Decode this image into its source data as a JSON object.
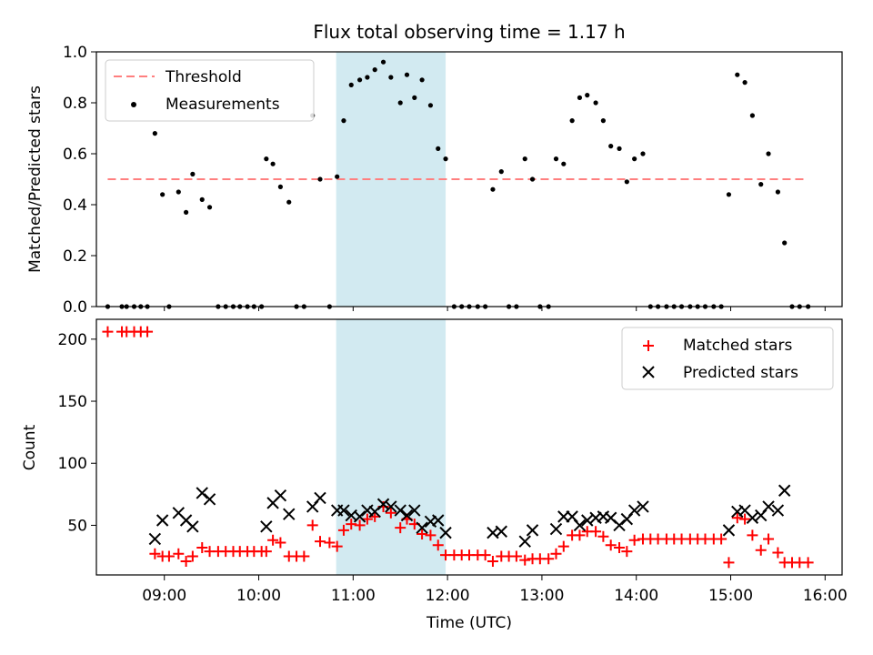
{
  "figure": {
    "title": "Flux total observing time = 1.17 h",
    "xlabel": "Time (UTC)"
  },
  "highlight_color": "#add8e6",
  "chart_data": [
    {
      "id": "top",
      "type": "scatter",
      "ylabel": "Matched/Predicted stars",
      "xlim": [
        8.28,
        16.18
      ],
      "ylim": [
        0,
        1.0
      ],
      "yticks": [
        0.0,
        0.2,
        0.4,
        0.6,
        0.8,
        1.0
      ],
      "ytick_labels": [
        "0.0",
        "0.2",
        "0.4",
        "0.6",
        "0.8",
        "1.0"
      ],
      "highlight_span": [
        10.82,
        11.98
      ],
      "threshold": {
        "label": "Threshold",
        "value": 0.5,
        "x_range": [
          8.4,
          15.78
        ],
        "color": "#ff7f7f"
      },
      "legend": {
        "position": "upper left",
        "entries": [
          "Threshold",
          "Measurements"
        ]
      },
      "series": [
        {
          "name": "Measurements",
          "color": "#000000",
          "points": [
            [
              8.4,
              0
            ],
            [
              8.55,
              0
            ],
            [
              8.6,
              0
            ],
            [
              8.68,
              0
            ],
            [
              8.75,
              0
            ],
            [
              8.82,
              0
            ],
            [
              8.9,
              0.68
            ],
            [
              8.98,
              0.44
            ],
            [
              9.05,
              0
            ],
            [
              9.15,
              0.45
            ],
            [
              9.23,
              0.37
            ],
            [
              9.3,
              0.52
            ],
            [
              9.4,
              0.42
            ],
            [
              9.48,
              0.39
            ],
            [
              9.57,
              0
            ],
            [
              9.65,
              0
            ],
            [
              9.73,
              0
            ],
            [
              9.8,
              0
            ],
            [
              9.88,
              0
            ],
            [
              9.95,
              0
            ],
            [
              10.03,
              0
            ],
            [
              10.08,
              0.58
            ],
            [
              10.15,
              0.56
            ],
            [
              10.23,
              0.47
            ],
            [
              10.32,
              0.41
            ],
            [
              10.4,
              0
            ],
            [
              10.48,
              0
            ],
            [
              10.57,
              0.75
            ],
            [
              10.65,
              0.5
            ],
            [
              10.75,
              0
            ],
            [
              10.83,
              0.51
            ],
            [
              10.9,
              0.73
            ],
            [
              10.98,
              0.87
            ],
            [
              11.07,
              0.89
            ],
            [
              11.15,
              0.9
            ],
            [
              11.23,
              0.93
            ],
            [
              11.32,
              0.96
            ],
            [
              11.4,
              0.9
            ],
            [
              11.5,
              0.8
            ],
            [
              11.57,
              0.91
            ],
            [
              11.65,
              0.82
            ],
            [
              11.73,
              0.89
            ],
            [
              11.82,
              0.79
            ],
            [
              11.9,
              0.62
            ],
            [
              11.98,
              0.58
            ],
            [
              12.07,
              0
            ],
            [
              12.15,
              0
            ],
            [
              12.23,
              0
            ],
            [
              12.32,
              0
            ],
            [
              12.4,
              0
            ],
            [
              12.48,
              0.46
            ],
            [
              12.57,
              0.53
            ],
            [
              12.65,
              0
            ],
            [
              12.73,
              0
            ],
            [
              12.82,
              0.58
            ],
            [
              12.9,
              0.5
            ],
            [
              12.98,
              0
            ],
            [
              13.07,
              0
            ],
            [
              13.15,
              0.58
            ],
            [
              13.23,
              0.56
            ],
            [
              13.32,
              0.73
            ],
            [
              13.4,
              0.82
            ],
            [
              13.48,
              0.83
            ],
            [
              13.57,
              0.8
            ],
            [
              13.65,
              0.73
            ],
            [
              13.73,
              0.63
            ],
            [
              13.82,
              0.62
            ],
            [
              13.9,
              0.49
            ],
            [
              13.98,
              0.58
            ],
            [
              14.07,
              0.6
            ],
            [
              14.15,
              0
            ],
            [
              14.23,
              0
            ],
            [
              14.32,
              0
            ],
            [
              14.4,
              0
            ],
            [
              14.48,
              0
            ],
            [
              14.57,
              0
            ],
            [
              14.65,
              0
            ],
            [
              14.73,
              0
            ],
            [
              14.82,
              0
            ],
            [
              14.9,
              0
            ],
            [
              14.98,
              0.44
            ],
            [
              15.07,
              0.91
            ],
            [
              15.15,
              0.88
            ],
            [
              15.23,
              0.75
            ],
            [
              15.32,
              0.48
            ],
            [
              15.4,
              0.6
            ],
            [
              15.5,
              0.45
            ],
            [
              15.57,
              0.25
            ],
            [
              15.65,
              0
            ],
            [
              15.73,
              0
            ],
            [
              15.82,
              0
            ]
          ]
        }
      ]
    },
    {
      "id": "bottom",
      "type": "scatter",
      "ylabel": "Count",
      "xlim": [
        8.28,
        16.18
      ],
      "ylim": [
        10,
        216
      ],
      "yticks": [
        50,
        100,
        150,
        200
      ],
      "ytick_labels": [
        "50",
        "100",
        "150",
        "200"
      ],
      "xticks": [
        9,
        10,
        11,
        12,
        13,
        14,
        15,
        16
      ],
      "xtick_labels": [
        "09:00",
        "10:00",
        "11:00",
        "12:00",
        "13:00",
        "14:00",
        "15:00",
        "16:00"
      ],
      "highlight_span": [
        10.82,
        11.98
      ],
      "legend": {
        "position": "upper right",
        "entries": [
          "Matched stars",
          "Predicted stars"
        ]
      },
      "series": [
        {
          "name": "Matched stars",
          "marker": "+",
          "color": "#ff0000",
          "points": [
            [
              8.4,
              206
            ],
            [
              8.55,
              206
            ],
            [
              8.6,
              206
            ],
            [
              8.68,
              206
            ],
            [
              8.75,
              206
            ],
            [
              8.82,
              206
            ],
            [
              8.9,
              27
            ],
            [
              8.98,
              25
            ],
            [
              9.05,
              25
            ],
            [
              9.15,
              27
            ],
            [
              9.23,
              21
            ],
            [
              9.3,
              25
            ],
            [
              9.4,
              32
            ],
            [
              9.48,
              29
            ],
            [
              9.57,
              29
            ],
            [
              9.65,
              29
            ],
            [
              9.73,
              29
            ],
            [
              9.8,
              29
            ],
            [
              9.88,
              29
            ],
            [
              9.95,
              29
            ],
            [
              10.03,
              29
            ],
            [
              10.08,
              29
            ],
            [
              10.15,
              38
            ],
            [
              10.23,
              36
            ],
            [
              10.32,
              25
            ],
            [
              10.4,
              25
            ],
            [
              10.48,
              25
            ],
            [
              10.57,
              50
            ],
            [
              10.65,
              37
            ],
            [
              10.75,
              36
            ],
            [
              10.83,
              33
            ],
            [
              10.9,
              46
            ],
            [
              10.98,
              51
            ],
            [
              11.07,
              50
            ],
            [
              11.15,
              55
            ],
            [
              11.23,
              57
            ],
            [
              11.32,
              65
            ],
            [
              11.4,
              60
            ],
            [
              11.5,
              48
            ],
            [
              11.57,
              55
            ],
            [
              11.65,
              51
            ],
            [
              11.73,
              43
            ],
            [
              11.82,
              42
            ],
            [
              11.9,
              34
            ],
            [
              11.98,
              26
            ],
            [
              12.07,
              26
            ],
            [
              12.15,
              26
            ],
            [
              12.23,
              26
            ],
            [
              12.32,
              26
            ],
            [
              12.4,
              26
            ],
            [
              12.48,
              21
            ],
            [
              12.57,
              25
            ],
            [
              12.65,
              25
            ],
            [
              12.73,
              25
            ],
            [
              12.82,
              22
            ],
            [
              12.9,
              23
            ],
            [
              12.98,
              23
            ],
            [
              13.07,
              23
            ],
            [
              13.15,
              27
            ],
            [
              13.23,
              33
            ],
            [
              13.32,
              42
            ],
            [
              13.4,
              42
            ],
            [
              13.48,
              45
            ],
            [
              13.57,
              45
            ],
            [
              13.65,
              41
            ],
            [
              13.73,
              34
            ],
            [
              13.82,
              32
            ],
            [
              13.9,
              29
            ],
            [
              13.98,
              38
            ],
            [
              14.07,
              39
            ],
            [
              14.15,
              39
            ],
            [
              14.23,
              39
            ],
            [
              14.32,
              39
            ],
            [
              14.4,
              39
            ],
            [
              14.48,
              39
            ],
            [
              14.57,
              39
            ],
            [
              14.65,
              39
            ],
            [
              14.73,
              39
            ],
            [
              14.82,
              39
            ],
            [
              14.9,
              39
            ],
            [
              14.98,
              20
            ],
            [
              15.07,
              56
            ],
            [
              15.15,
              55
            ],
            [
              15.23,
              42
            ],
            [
              15.32,
              30
            ],
            [
              15.4,
              39
            ],
            [
              15.5,
              28
            ],
            [
              15.57,
              20
            ],
            [
              15.65,
              20
            ],
            [
              15.73,
              20
            ],
            [
              15.82,
              20
            ]
          ]
        },
        {
          "name": "Predicted stars",
          "marker": "x",
          "color": "#000000",
          "points": [
            [
              8.9,
              39
            ],
            [
              8.98,
              54
            ],
            [
              9.15,
              60
            ],
            [
              9.23,
              54
            ],
            [
              9.3,
              49
            ],
            [
              9.4,
              76
            ],
            [
              9.48,
              71
            ],
            [
              10.08,
              49
            ],
            [
              10.15,
              68
            ],
            [
              10.23,
              74
            ],
            [
              10.32,
              59
            ],
            [
              10.57,
              65
            ],
            [
              10.65,
              72
            ],
            [
              10.83,
              62
            ],
            [
              10.9,
              62
            ],
            [
              10.98,
              58
            ],
            [
              11.07,
              57
            ],
            [
              11.15,
              62
            ],
            [
              11.23,
              61
            ],
            [
              11.32,
              67
            ],
            [
              11.4,
              65
            ],
            [
              11.5,
              62
            ],
            [
              11.57,
              58
            ],
            [
              11.65,
              62
            ],
            [
              11.73,
              48
            ],
            [
              11.82,
              53
            ],
            [
              11.9,
              54
            ],
            [
              11.98,
              44
            ],
            [
              12.48,
              44
            ],
            [
              12.57,
              45
            ],
            [
              12.82,
              37
            ],
            [
              12.9,
              46
            ],
            [
              13.15,
              47
            ],
            [
              13.23,
              57
            ],
            [
              13.32,
              57
            ],
            [
              13.4,
              50
            ],
            [
              13.48,
              54
            ],
            [
              13.57,
              56
            ],
            [
              13.65,
              57
            ],
            [
              13.73,
              56
            ],
            [
              13.82,
              50
            ],
            [
              13.9,
              55
            ],
            [
              13.98,
              62
            ],
            [
              14.07,
              65
            ],
            [
              14.98,
              46
            ],
            [
              15.07,
              61
            ],
            [
              15.15,
              62
            ],
            [
              15.23,
              56
            ],
            [
              15.32,
              58
            ],
            [
              15.4,
              65
            ],
            [
              15.5,
              62
            ],
            [
              15.57,
              78
            ]
          ]
        }
      ]
    }
  ]
}
